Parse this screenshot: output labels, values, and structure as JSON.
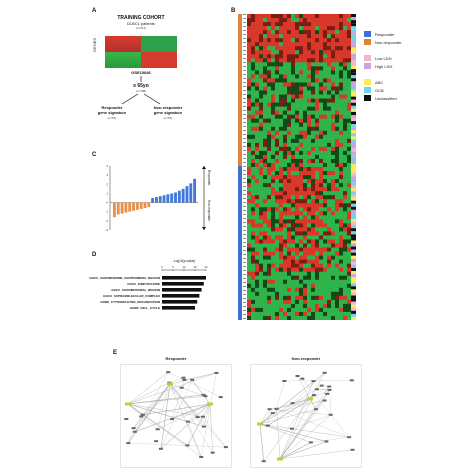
{
  "panel_labels": {
    "a": "A",
    "b": "B",
    "c": "C",
    "d": "D",
    "e": "E"
  },
  "panel_a": {
    "title": "TRAINING COHORT",
    "subtitle": "DLBCL patients",
    "n_total": "(n=414)",
    "genes_label": "GENES",
    "dataset": "GSE10846",
    "age_filter": "≥ 65yo",
    "n_age": "(n=188)",
    "responder_label": "Responder\ngene signature",
    "responder_n": "(n=94)",
    "nonresponder_label": "Non-responder\ngene signature",
    "nonresponder_n": "(n=94)"
  },
  "panel_b": {
    "legend": [
      {
        "label": "Responder",
        "color": "#3f6fd0"
      },
      {
        "label": "Non-responder",
        "color": "#e0823a"
      },
      {
        "label": "Low LDH",
        "color": "#f4b6c8"
      },
      {
        "label": "High LDH",
        "color": "#c7a3e0"
      },
      {
        "label": "ABC",
        "color": "#ffe95a"
      },
      {
        "label": "GCB",
        "color": "#6fd6e8"
      },
      {
        "label": "Unclassified",
        "color": "#111111"
      }
    ]
  },
  "panel_c": {
    "side_label_top": "Responder",
    "side_label_bottom": "Non-responder"
  },
  "panel_d": {
    "axis_label": "-Log10(p-value)",
    "ticks": [
      "0",
      "5",
      "10",
      "15",
      "20"
    ]
  },
  "panel_e": {
    "responder_title": "Responder",
    "nonresponder_title": "Non-responder"
  },
  "chart_data": [
    {
      "type": "bar",
      "title": "",
      "xlabel": "",
      "ylabel": "",
      "yticks": [
        "4",
        "3",
        "2",
        "1",
        "0",
        "-1",
        "-2",
        "-3"
      ],
      "ylim": [
        -3,
        4
      ],
      "values": [
        -1.6,
        -1.3,
        -1.2,
        -1.1,
        -1.0,
        -0.9,
        -0.8,
        -0.7,
        -0.6,
        -0.5,
        0.5,
        0.6,
        0.7,
        0.8,
        0.9,
        1.0,
        1.1,
        1.3,
        1.5,
        1.8,
        2.1,
        2.6
      ],
      "colors": {
        "negative": "#e8914a",
        "positive": "#3f78d8"
      },
      "legend": "none"
    },
    {
      "type": "bar",
      "orientation": "horizontal",
      "title": "",
      "xlabel": "-Log10(p-value)",
      "ylabel": "",
      "xlim": [
        0,
        20
      ],
      "categories": [
        "GOCC_CHROMOSOME_CENTROMERIC_REGION",
        "GOCC_KINETOCHORE",
        "GOCC_CHROMOSOMAL_REGION",
        "GOCC_SUPRAMOLECULAR_COMPLEX",
        "GOBP_CYTOSKELETON_ORGANIZATION",
        "GOBP_CELL_CYCLE"
      ],
      "values": [
        20,
        19,
        18,
        17,
        16,
        15
      ]
    }
  ]
}
